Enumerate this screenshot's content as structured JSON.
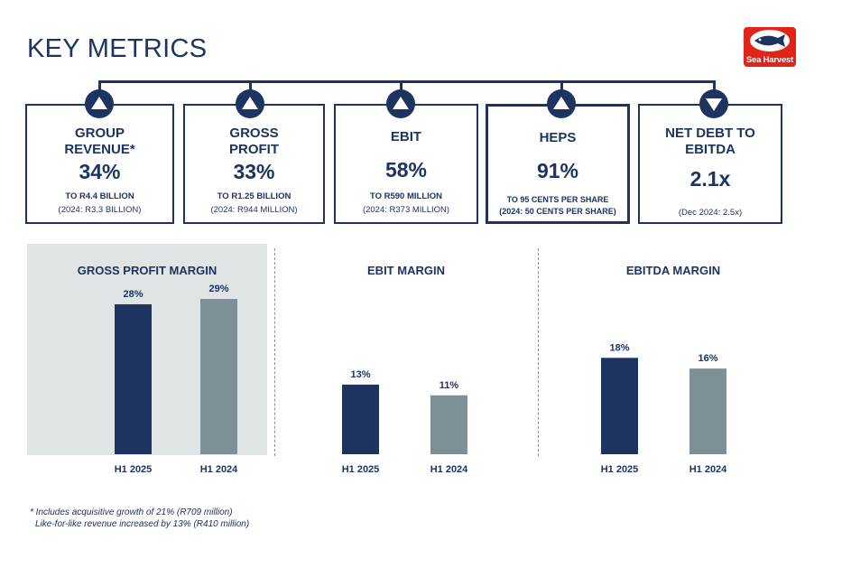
{
  "header": {
    "title": "KEY METRICS"
  },
  "logo": {
    "text": "Sea Harvest"
  },
  "kpis": [
    {
      "name_lines": [
        "GROUP",
        "REVENUE*"
      ],
      "direction": "up",
      "value": "34%",
      "sub": "TO R4.4 BILLION",
      "prior": "(2024: R3.3 BILLION)"
    },
    {
      "name_lines": [
        "GROSS",
        "PROFIT"
      ],
      "direction": "up",
      "value": "33%",
      "sub": "TO R1.25 BILLION",
      "prior": "(2024: R944 MILLION)"
    },
    {
      "name_lines": [
        "EBIT"
      ],
      "direction": "up",
      "value": "58%",
      "sub": "TO R590 MILLION",
      "prior": "(2024: R373 MILLION)"
    },
    {
      "name_lines": [
        "HEPS"
      ],
      "direction": "up",
      "value": "91%",
      "sub": "TO 95 CENTS PER SHARE",
      "prior": "(2024: 50 CENTS PER SHARE)"
    },
    {
      "name_lines": [
        "NET DEBT TO",
        "EBITDA"
      ],
      "direction": "down",
      "value": "2.1x",
      "sub": "",
      "prior": "(Dec 2024: 2.5x)"
    }
  ],
  "colors": {
    "navy": "#1d3461",
    "grey_bar": "#7f8f97",
    "panel_bg": "#dfe5e4",
    "logo_red": "#e2231a"
  },
  "chart_data": [
    {
      "type": "bar",
      "title": "GROSS PROFIT MARGIN",
      "categories": [
        "H1 2025",
        "H1 2024"
      ],
      "values": [
        28,
        29
      ],
      "labels": [
        "28%",
        "29%"
      ],
      "ylim": [
        0,
        35
      ],
      "highlighted": true
    },
    {
      "type": "bar",
      "title": "EBIT MARGIN",
      "categories": [
        "H1 2025",
        "H1 2024"
      ],
      "values": [
        13,
        11
      ],
      "labels": [
        "13%",
        "11%"
      ],
      "ylim": [
        0,
        35
      ]
    },
    {
      "type": "bar",
      "title": "EBITDA  MARGIN",
      "categories": [
        "H1 2025",
        "H1 2024"
      ],
      "values": [
        18,
        16
      ],
      "labels": [
        "18%",
        "16%"
      ],
      "ylim": [
        0,
        35
      ]
    }
  ],
  "footnote": {
    "line1": "* Includes acquisitive growth of 21% (R709 million)",
    "line2": "Like-for-like revenue increased by 13% (R410 million)"
  }
}
